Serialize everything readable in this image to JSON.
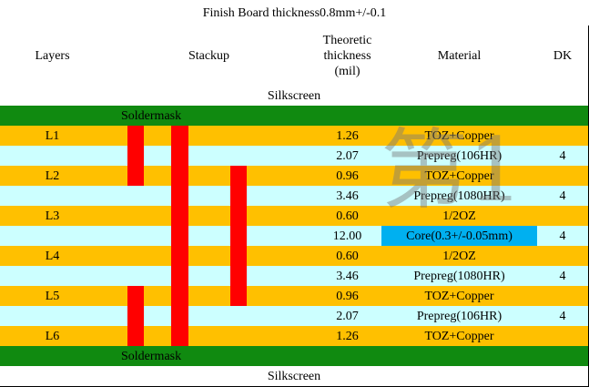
{
  "title": "Finish Board thickness0.8mm+/-0.1",
  "header": {
    "layers": "Layers",
    "stackup": "Stackup",
    "thickness": "Theoretic thickness (mil)",
    "material": "Material",
    "dk": "DK"
  },
  "silkscreen_top": "Silkscreen",
  "soldermask_top": "Soldermask",
  "rows": [
    {
      "layer": "L1",
      "thickness": "1.26",
      "material": "TOZ+Copper"
    },
    {
      "thickness": "2.07",
      "material": "Prepreg(106HR)",
      "dk": "4"
    },
    {
      "layer": "L2",
      "thickness": "0.96",
      "material": "TOZ+Copper"
    },
    {
      "thickness": "3.46",
      "material": "Prepreg(1080HR)",
      "dk": "4"
    },
    {
      "layer": "L3",
      "thickness": "0.60",
      "material": "1/2OZ"
    },
    {
      "thickness": "12.00",
      "material": "Core(0.3+/-0.05mm)",
      "dk": "4"
    },
    {
      "layer": "L4",
      "thickness": "0.60",
      "material": "1/2OZ"
    },
    {
      "thickness": "3.46",
      "material": "Prepreg(1080HR)",
      "dk": "4"
    },
    {
      "layer": "L5",
      "thickness": "0.96",
      "material": "TOZ+Copper"
    },
    {
      "thickness": "2.07",
      "material": "Prepreg(106HR)",
      "dk": "4"
    },
    {
      "layer": "L6",
      "thickness": "1.26",
      "material": "TOZ+Copper"
    }
  ],
  "soldermask_bottom": "Soldermask",
  "silkscreen_bottom": "Silkscreen",
  "watermark": "第1"
}
